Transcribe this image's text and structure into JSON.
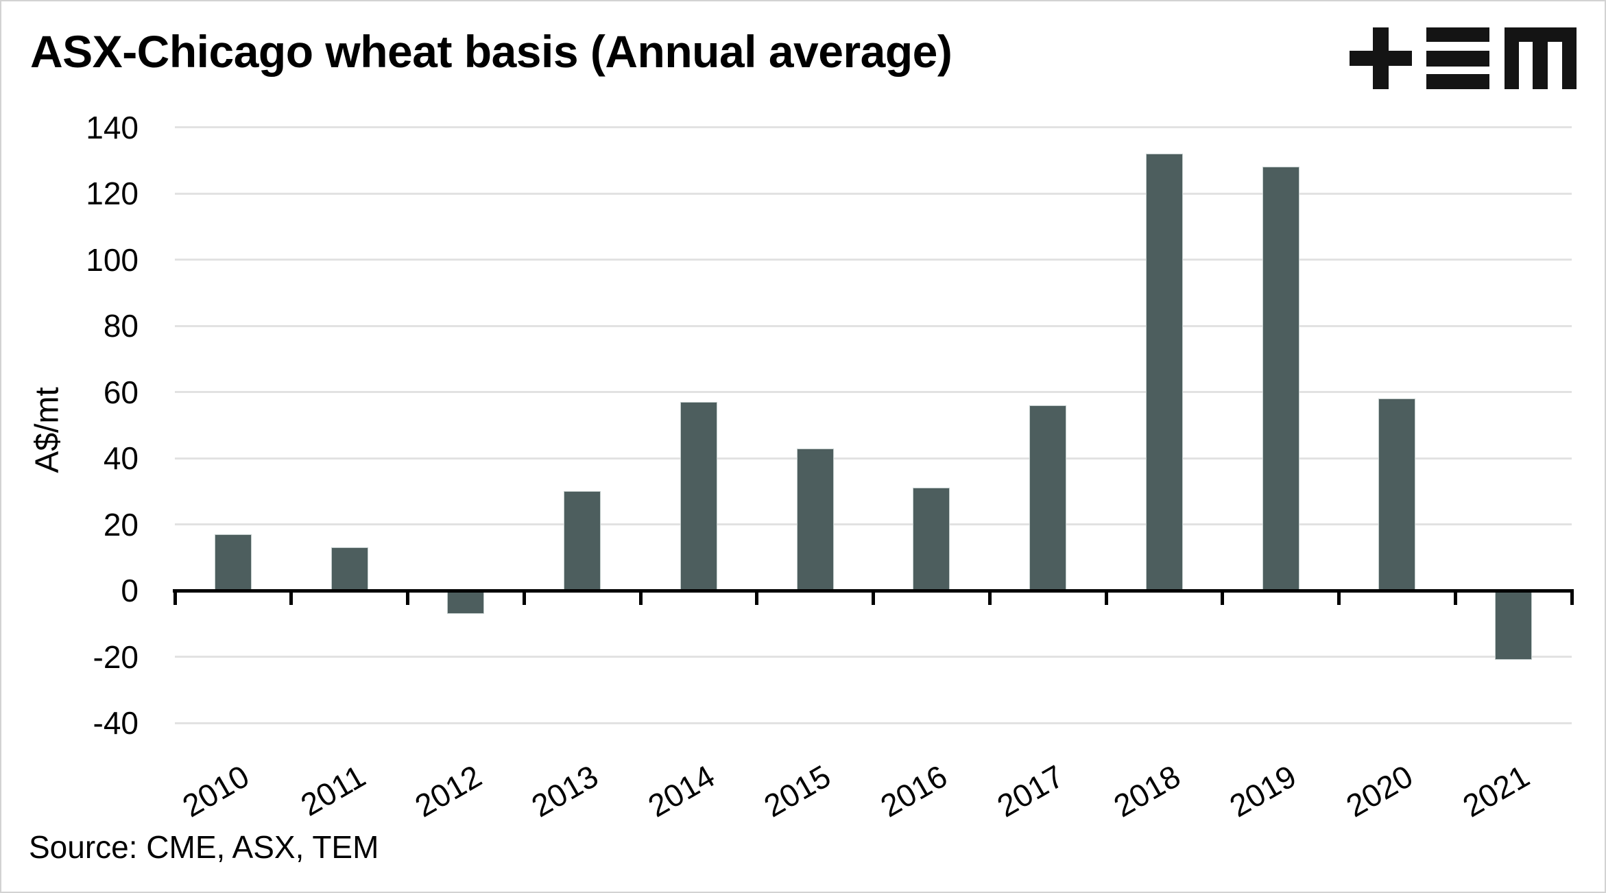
{
  "header": {
    "title": "ASX-Chicago wheat basis (Annual average)",
    "logo_text": "TEM"
  },
  "chart_data": {
    "type": "bar",
    "title": "ASX-Chicago wheat basis (Annual average)",
    "categories": [
      "2010",
      "2011",
      "2012",
      "2013",
      "2014",
      "2015",
      "2016",
      "2017",
      "2018",
      "2019",
      "2020",
      "2021"
    ],
    "values": [
      17,
      13,
      -7,
      30,
      57,
      43,
      31,
      56,
      132,
      128,
      58,
      -21
    ],
    "xlabel": "",
    "ylabel": "A$/mt",
    "ylim": [
      -40,
      140
    ],
    "ytick_step": 20,
    "grid": "horizontal",
    "legend": "none",
    "colors": {
      "bar": "#4d5e5e",
      "axis": "#000000",
      "gridline": "#e2e2e2",
      "text": "#000000",
      "frame_border": "#d2d2d2"
    }
  },
  "footer": {
    "source": "Source: CME, ASX, TEM"
  }
}
